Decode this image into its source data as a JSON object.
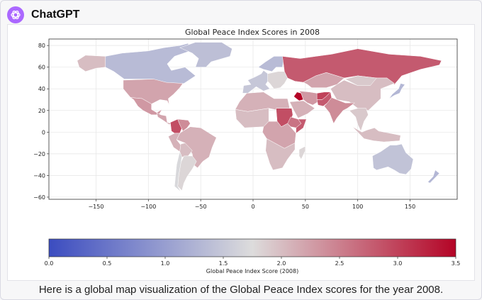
{
  "app": {
    "title": "ChatGPT",
    "logo_icon": "openai-logo-icon",
    "accent": "#ab68ff"
  },
  "message": {
    "caption": "Here is a global map visualization of the Global Peace Index scores for the year 2008."
  },
  "chart_data": {
    "type": "heatmap",
    "subtype": "choropleth-map",
    "title": "Global Peace Index Scores in 2008",
    "xticks": [
      -150,
      -100,
      -50,
      0,
      50,
      100,
      150
    ],
    "yticks": [
      80,
      60,
      40,
      20,
      0,
      -20,
      -40,
      -60
    ],
    "xlim": [
      -195,
      195
    ],
    "ylim": [
      -62,
      86
    ],
    "grid": true,
    "colorbar": {
      "label": "Global Peace Index Score (2008)",
      "ticks": [
        0.0,
        0.5,
        1.0,
        1.5,
        2.0,
        2.5,
        3.0,
        3.5
      ],
      "range": [
        0.0,
        3.5
      ],
      "colormap": "coolwarm",
      "low_color": "#3b4cc0",
      "mid_color": "#dddcdc",
      "high_color": "#b40426"
    },
    "regions": [
      {
        "name": "Alaska",
        "value": 2.0
      },
      {
        "name": "Canada",
        "value": 1.35
      },
      {
        "name": "Greenland",
        "value": 1.4
      },
      {
        "name": "United States",
        "value": 2.2
      },
      {
        "name": "Mexico",
        "value": 2.3
      },
      {
        "name": "Central America",
        "value": 2.2
      },
      {
        "name": "Colombia",
        "value": 2.9
      },
      {
        "name": "Venezuela",
        "value": 2.4
      },
      {
        "name": "Brazil",
        "value": 2.1
      },
      {
        "name": "Peru",
        "value": 2.1
      },
      {
        "name": "Bolivia",
        "value": 2.0
      },
      {
        "name": "Argentina",
        "value": 1.8
      },
      {
        "name": "Chile",
        "value": 1.7
      },
      {
        "name": "Scandinavia",
        "value": 1.35
      },
      {
        "name": "Western Europe",
        "value": 1.5
      },
      {
        "name": "Eastern Europe",
        "value": 1.8
      },
      {
        "name": "Russia",
        "value": 2.8
      },
      {
        "name": "Kazakhstan",
        "value": 2.2
      },
      {
        "name": "China",
        "value": 2.0
      },
      {
        "name": "Mongolia",
        "value": 1.9
      },
      {
        "name": "North Africa",
        "value": 2.1
      },
      {
        "name": "West Africa",
        "value": 2.0
      },
      {
        "name": "Sudan",
        "value": 2.9
      },
      {
        "name": "Ethiopia",
        "value": 2.6
      },
      {
        "name": "Somalia",
        "value": 2.8
      },
      {
        "name": "Central Africa",
        "value": 2.2
      },
      {
        "name": "Southern Africa",
        "value": 2.0
      },
      {
        "name": "Madagascar",
        "value": 1.8
      },
      {
        "name": "Saudi Arabia",
        "value": 2.1
      },
      {
        "name": "Iraq",
        "value": 3.5
      },
      {
        "name": "Iran",
        "value": 2.3
      },
      {
        "name": "Afghanistan",
        "value": 3.0
      },
      {
        "name": "Pakistan",
        "value": 2.8
      },
      {
        "name": "India",
        "value": 2.4
      },
      {
        "name": "Southeast Asia",
        "value": 1.9
      },
      {
        "name": "Indonesia",
        "value": 2.0
      },
      {
        "name": "Japan",
        "value": 1.3
      },
      {
        "name": "Australia",
        "value": 1.45
      },
      {
        "name": "New Zealand",
        "value": 1.3
      }
    ]
  }
}
